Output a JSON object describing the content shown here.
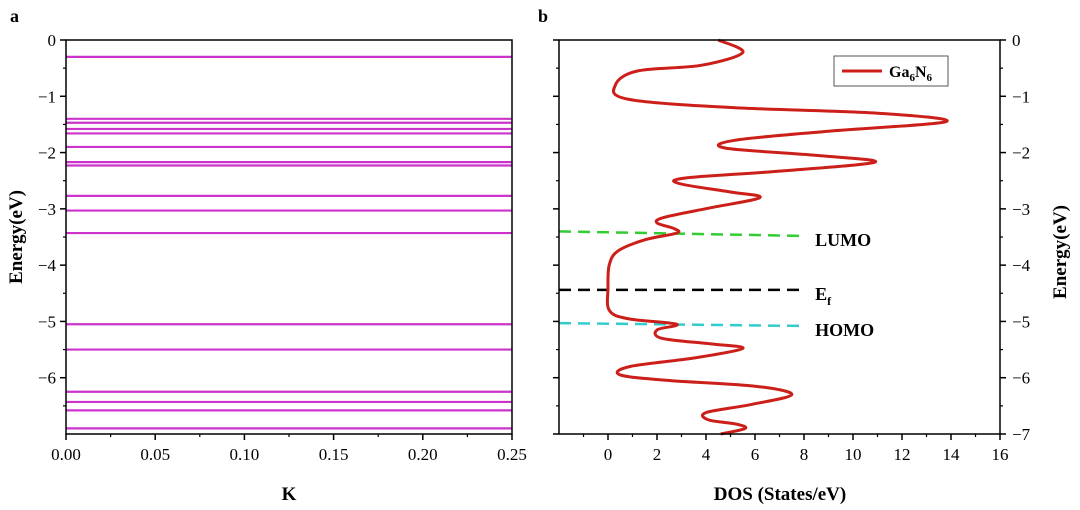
{
  "chart_data": [
    {
      "type": "line",
      "panel_label": "a",
      "title": "",
      "xlabel": "K",
      "ylabel": "Energy(eV)",
      "xlim": [
        0.0,
        0.25
      ],
      "ylim": [
        -7,
        0
      ],
      "xticks": [
        0.0,
        0.05,
        0.1,
        0.15,
        0.2,
        0.25
      ],
      "xtick_labels": [
        "0.00",
        "0.05",
        "0.10",
        "0.15",
        "0.20",
        "0.25"
      ],
      "yticks": [
        0,
        -1,
        -2,
        -3,
        -4,
        -5,
        -6
      ],
      "ytick_labels": [
        "0",
        "−1",
        "−2",
        "−3",
        "−4",
        "−5",
        "−6"
      ],
      "line_color": "#cc33cc",
      "series": [
        {
          "name": "energy levels",
          "levels": [
            -0.3,
            -1.4,
            -1.47,
            -1.58,
            -1.66,
            -1.9,
            -2.17,
            -2.23,
            -2.77,
            -3.03,
            -3.43,
            -5.05,
            -5.5,
            -6.25,
            -6.43,
            -6.58,
            -6.9
          ]
        }
      ]
    },
    {
      "type": "line",
      "panel_label": "b",
      "title": "",
      "xlabel": "DOS (States/eV)",
      "ylabel": "Energy(eV)",
      "xlim": [
        -2,
        16
      ],
      "ylim": [
        -7,
        0
      ],
      "xticks": [
        0,
        2,
        4,
        6,
        8,
        10,
        12,
        14,
        16
      ],
      "xtick_labels": [
        "0",
        "2",
        "4",
        "6",
        "8",
        "10",
        "12",
        "14",
        "16"
      ],
      "yticks": [
        0,
        -1,
        -2,
        -3,
        -4,
        -5,
        -6,
        -7
      ],
      "ytick_labels": [
        "0",
        "−1",
        "−2",
        "−3",
        "−4",
        "−5",
        "−6",
        "−7"
      ],
      "legend": {
        "position": "top-right",
        "entry_base": "Ga",
        "entry_sub1": "6",
        "entry_mid": "N",
        "entry_sub2": "6"
      },
      "series": [
        {
          "name": "Ga6N6",
          "color": "#cc1f1a",
          "points": [
            [
              4.5,
              0.0
            ],
            [
              5.5,
              -0.22
            ],
            [
              3.8,
              -0.45
            ],
            [
              1.2,
              -0.55
            ],
            [
              0.3,
              -0.8
            ],
            [
              0.8,
              -1.05
            ],
            [
              5.0,
              -1.2
            ],
            [
              11.0,
              -1.3
            ],
            [
              13.8,
              -1.45
            ],
            [
              9.0,
              -1.62
            ],
            [
              5.2,
              -1.78
            ],
            [
              4.8,
              -1.92
            ],
            [
              8.5,
              -2.05
            ],
            [
              10.9,
              -2.17
            ],
            [
              7.0,
              -2.33
            ],
            [
              3.2,
              -2.45
            ],
            [
              2.9,
              -2.55
            ],
            [
              5.0,
              -2.7
            ],
            [
              6.2,
              -2.8
            ],
            [
              4.2,
              -2.98
            ],
            [
              2.3,
              -3.15
            ],
            [
              2.0,
              -3.25
            ],
            [
              2.7,
              -3.35
            ],
            [
              2.8,
              -3.43
            ],
            [
              1.5,
              -3.55
            ],
            [
              0.4,
              -3.75
            ],
            [
              0.05,
              -4.0
            ],
            [
              0.0,
              -4.4
            ],
            [
              0.05,
              -4.8
            ],
            [
              0.8,
              -4.95
            ],
            [
              2.8,
              -5.05
            ],
            [
              2.0,
              -5.15
            ],
            [
              2.2,
              -5.3
            ],
            [
              4.2,
              -5.4
            ],
            [
              5.5,
              -5.48
            ],
            [
              3.5,
              -5.65
            ],
            [
              0.9,
              -5.8
            ],
            [
              0.5,
              -5.95
            ],
            [
              2.5,
              -6.05
            ],
            [
              6.0,
              -6.15
            ],
            [
              7.5,
              -6.3
            ],
            [
              5.8,
              -6.48
            ],
            [
              4.0,
              -6.62
            ],
            [
              4.1,
              -6.75
            ],
            [
              5.2,
              -6.82
            ],
            [
              5.6,
              -6.9
            ],
            [
              4.6,
              -7.0
            ]
          ]
        }
      ],
      "reference_lines": [
        {
          "label_base": "LUMO",
          "label_sub": "",
          "color": "#33cc33",
          "y_start": -3.4,
          "y_end": -3.48,
          "x_start": -2.0,
          "x_end": 7.8
        },
        {
          "label_base": "E",
          "label_sub": "f",
          "color": "#000000",
          "y_start": -4.44,
          "y_end": -4.44,
          "x_start": -2.0,
          "x_end": 7.8
        },
        {
          "label_base": "HOMO",
          "label_sub": "",
          "color": "#33cccc",
          "y_start": -5.03,
          "y_end": -5.08,
          "x_start": -2.0,
          "x_end": 7.8
        }
      ]
    }
  ]
}
